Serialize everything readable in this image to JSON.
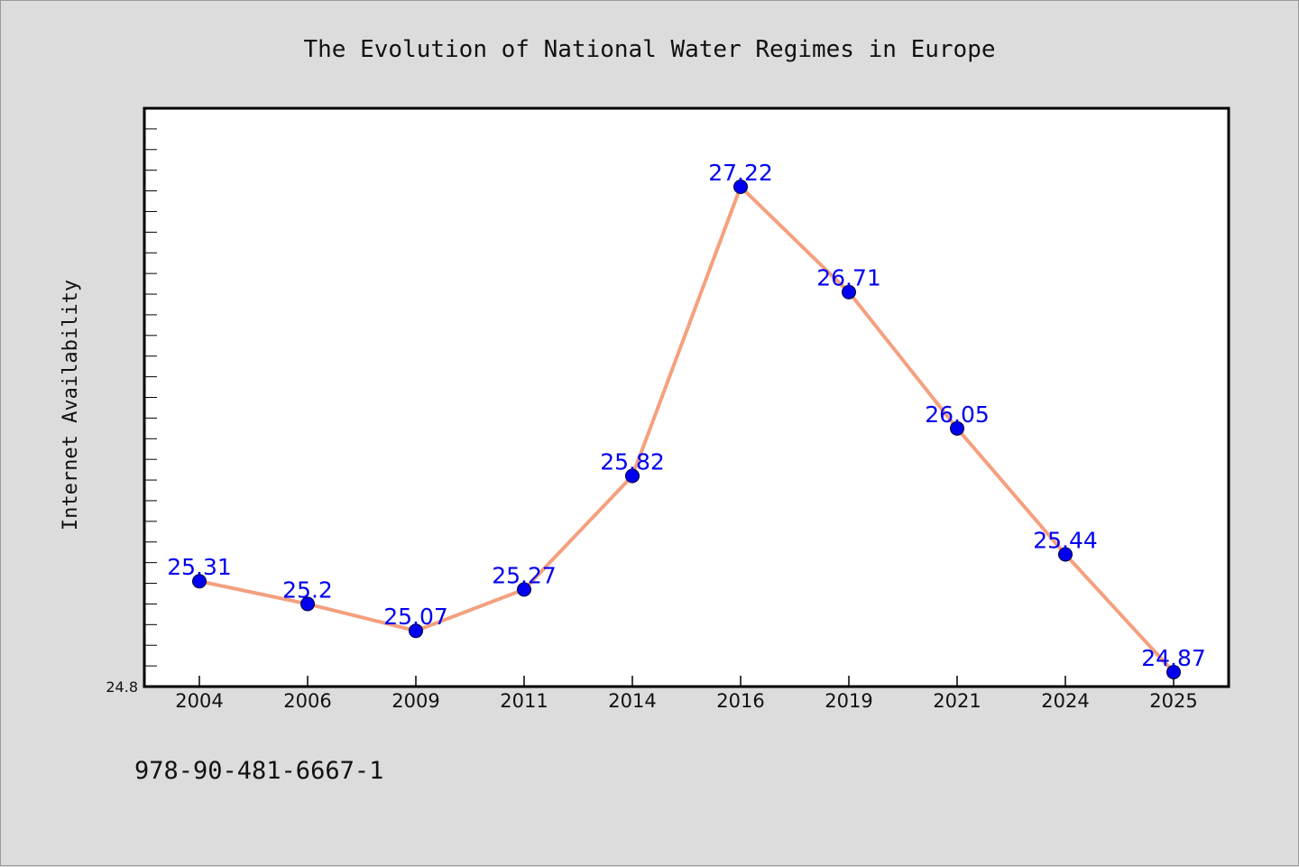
{
  "chart_data": {
    "type": "line",
    "title": "The Evolution of National Water Regimes in Europe",
    "xlabel": "",
    "ylabel": "Internet Availability",
    "categories": [
      "2004",
      "2006",
      "2009",
      "2011",
      "2014",
      "2016",
      "2019",
      "2021",
      "2024",
      "2025"
    ],
    "series": [
      {
        "values": [
          25.31,
          25.2,
          25.07,
          25.27,
          25.82,
          27.22,
          26.71,
          26.05,
          25.44,
          24.87
        ],
        "data_labels": [
          "25.31",
          "25.2",
          "25.07",
          "25.27",
          "25.82",
          "27.22",
          "26.71",
          "26.05",
          "25.44",
          "24.87"
        ],
        "line_color": "#f4a07e",
        "marker_color": "#0000ee"
      }
    ],
    "ylim": [
      24.8,
      27.6
    ],
    "y_tick_labels": [
      "24.8"
    ],
    "grid": false,
    "legend": "none"
  },
  "footer": {
    "isbn": "978-90-481-6667-1"
  }
}
